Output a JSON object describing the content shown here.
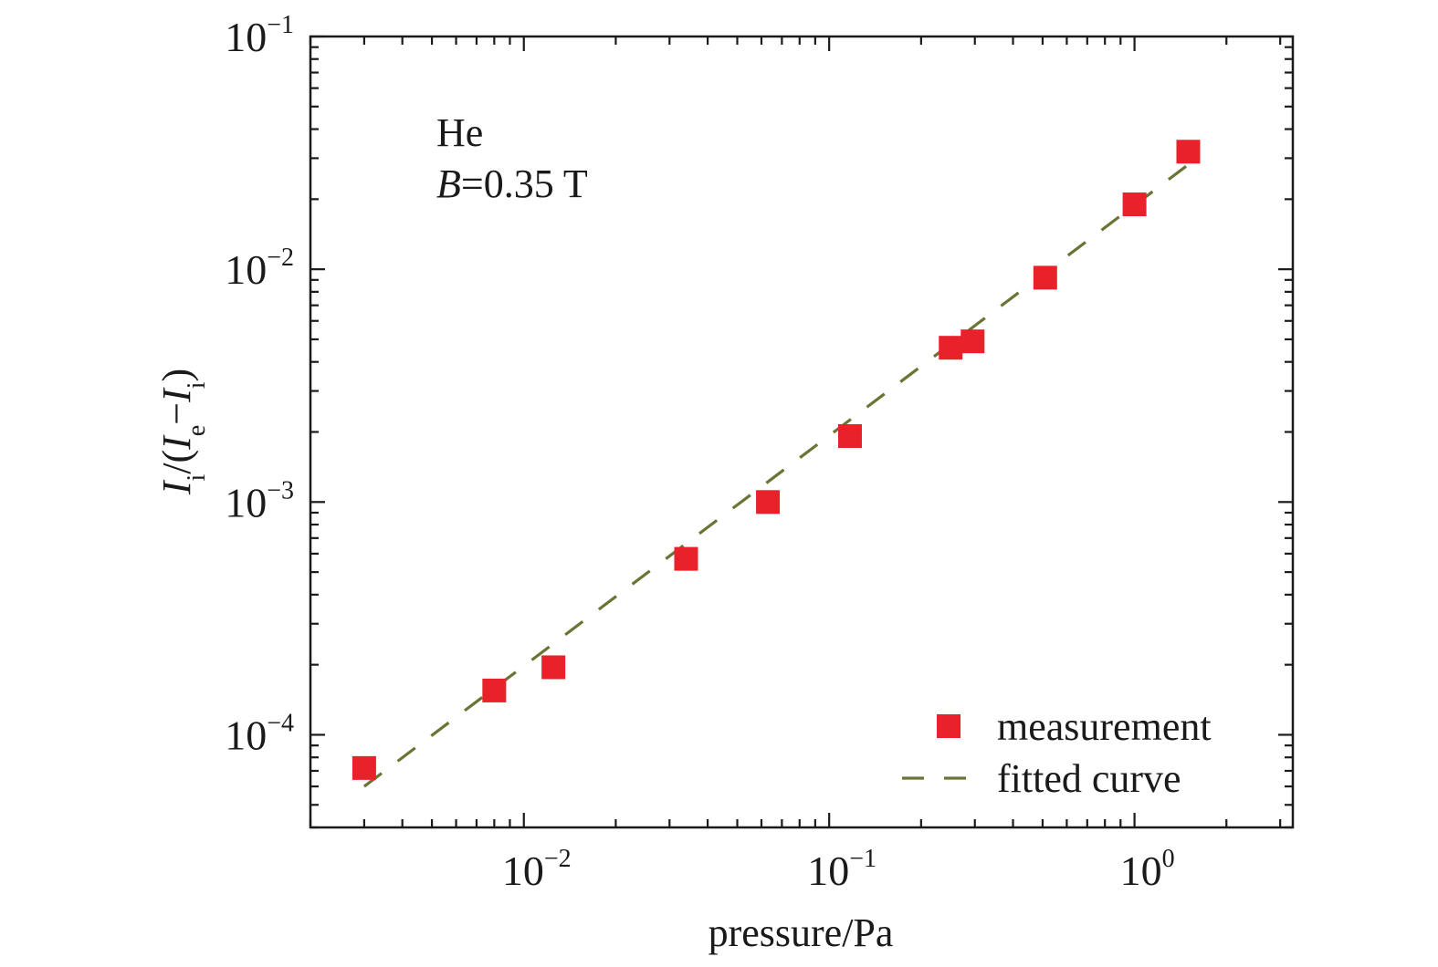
{
  "chart_data": {
    "type": "scatter",
    "xscale": "log",
    "yscale": "log",
    "xlim": [
      0.002,
      3.3
    ],
    "ylim": [
      4e-05,
      0.1
    ],
    "xlabel": "pressure/Pa",
    "ylabel": {
      "I1": "I",
      "sub1": "i",
      "mid": "/(",
      "I2": "I",
      "sub2": "e",
      "minus": "−",
      "I3": "I",
      "sub3": "i",
      "close": ")"
    },
    "x_ticks": [
      {
        "value": 0.01,
        "base": "10",
        "exp": "−2"
      },
      {
        "value": 0.1,
        "base": "10",
        "exp": "−1"
      },
      {
        "value": 1,
        "base": "10",
        "exp": "0"
      }
    ],
    "y_ticks": [
      {
        "value": 0.0001,
        "base": "10",
        "exp": "−4"
      },
      {
        "value": 0.001,
        "base": "10",
        "exp": "−3"
      },
      {
        "value": 0.01,
        "base": "10",
        "exp": "−2"
      },
      {
        "value": 0.1,
        "base": "10",
        "exp": "−1"
      }
    ],
    "annotation": {
      "gas": "He",
      "field_var": "B",
      "field_value": "=0.35 T"
    },
    "series": [
      {
        "name": "measurement",
        "kind": "markers",
        "color": "#e8212a",
        "marker": "square",
        "x": [
          0.003,
          0.008,
          0.0125,
          0.034,
          0.063,
          0.117,
          0.25,
          0.295,
          0.51,
          1.0,
          1.5
        ],
        "y": [
          7.2e-05,
          0.000155,
          0.000195,
          0.00057,
          0.001,
          0.00192,
          0.0046,
          0.0049,
          0.0092,
          0.019,
          0.032
        ]
      },
      {
        "name": "fitted curve",
        "kind": "dashed-line",
        "color": "#6b7434",
        "x": [
          0.003,
          1.6
        ],
        "y": [
          6e-05,
          0.03
        ]
      }
    ],
    "legend": {
      "position": "bottom-right"
    },
    "grid": false
  }
}
